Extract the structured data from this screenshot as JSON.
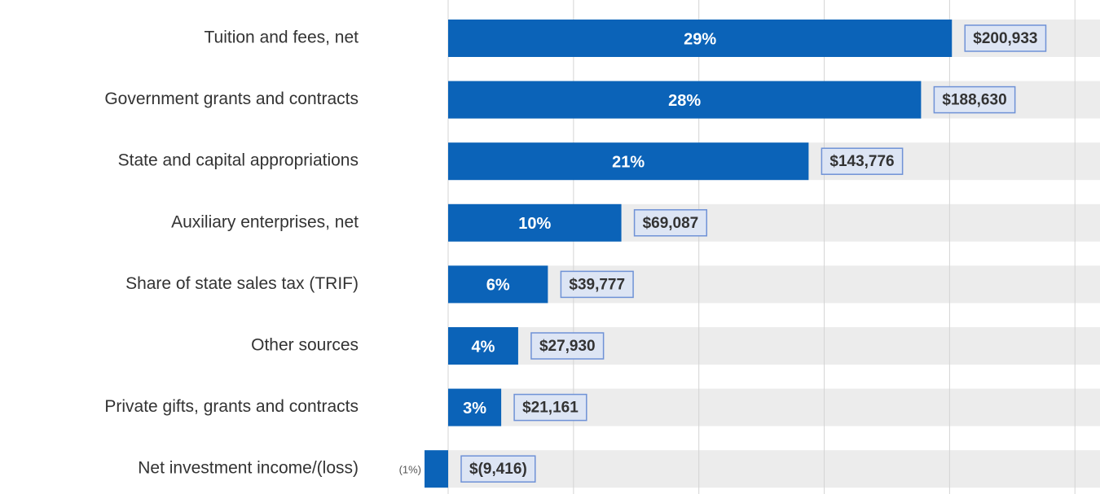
{
  "chart_data": {
    "type": "bar",
    "orientation": "horizontal",
    "categories": [
      "Tuition and fees, net",
      "Government grants and contracts",
      "State and capital appropriations",
      "Auxiliary enterprises, net",
      "Share of state sales tax (TRIF)",
      "Other sources",
      "Private gifts, grants and contracts",
      "Net investment income/(loss)"
    ],
    "values": [
      200933,
      188630,
      143776,
      69087,
      39777,
      27930,
      21161,
      -9416
    ],
    "value_labels": [
      "$200,933",
      "$188,630",
      "$143,776",
      "$69,087",
      "$39,777",
      "$27,930",
      "$21,161",
      "$(9,416)"
    ],
    "shares": [
      29,
      28,
      21,
      10,
      6,
      4,
      3,
      -1
    ],
    "share_labels": [
      "29%",
      "28%",
      "21%",
      "10%",
      "6%",
      "4%",
      "3%",
      "(1%)"
    ],
    "color": "#0b63b8",
    "xlim": [
      -26000,
      260000
    ],
    "xticks": [
      0,
      50000,
      100000,
      150000,
      200000,
      250000
    ],
    "grid": true
  }
}
